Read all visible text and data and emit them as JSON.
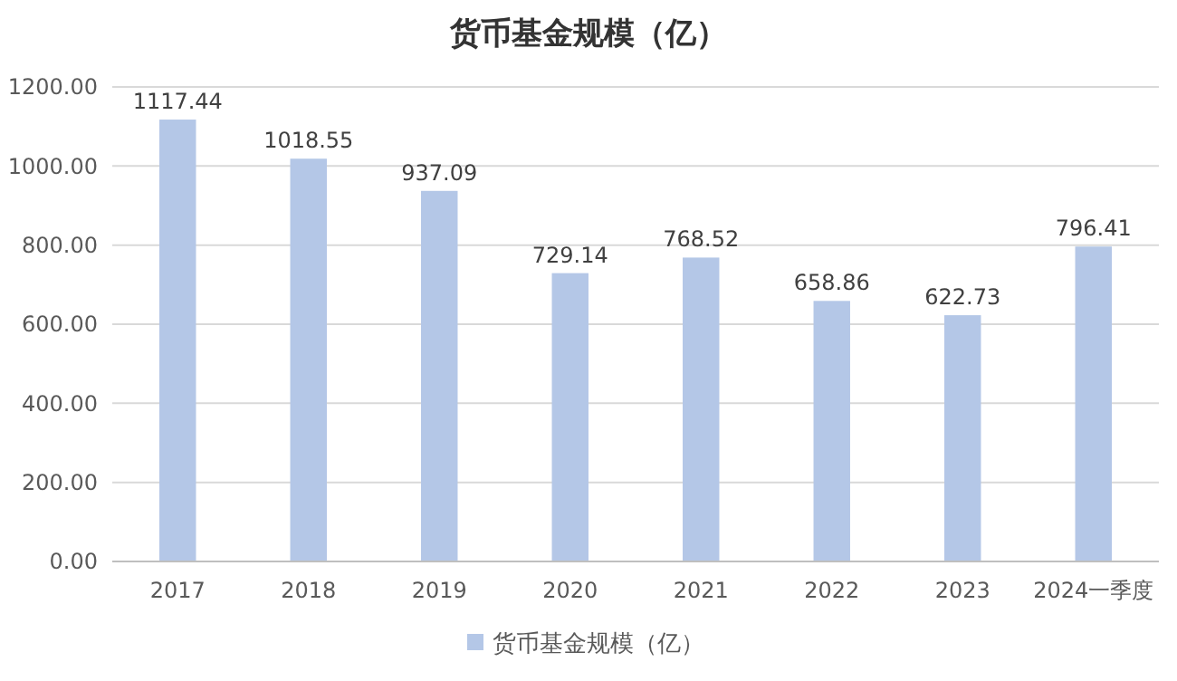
{
  "chart_data": {
    "type": "bar",
    "title": "货币基金规模（亿）",
    "categories": [
      "2017",
      "2018",
      "2019",
      "2020",
      "2021",
      "2022",
      "2023",
      "2024一季度"
    ],
    "series": [
      {
        "name": "货币基金规模（亿）",
        "color": "#b4c7e7",
        "values": [
          1117.44,
          1018.55,
          937.09,
          729.14,
          768.52,
          658.86,
          622.73,
          796.41
        ]
      }
    ],
    "ylim": [
      0,
      1200
    ],
    "yticks": [
      {
        "value": 0,
        "label": "0.00"
      },
      {
        "value": 200,
        "label": "200.00"
      },
      {
        "value": 400,
        "label": "400.00"
      },
      {
        "value": 600,
        "label": "600.00"
      },
      {
        "value": 800,
        "label": "800.00"
      },
      {
        "value": 1000,
        "label": "1000.00"
      },
      {
        "value": 1200,
        "label": "1200.00"
      }
    ],
    "grid": "y",
    "data_labels": true,
    "legend": "bottom"
  }
}
